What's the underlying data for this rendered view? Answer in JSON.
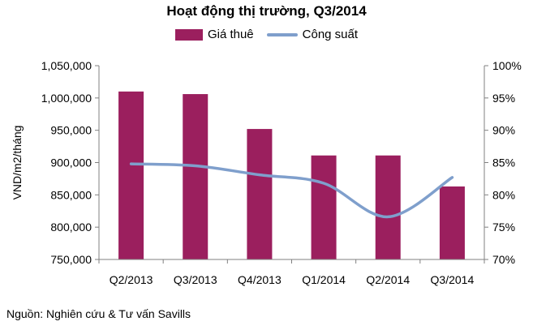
{
  "chart_data": {
    "type": "bar",
    "title": "Hoạt động thị trường, Q3/2014",
    "categories": [
      "Q2/2013",
      "Q3/2013",
      "Q4/2013",
      "Q1/2014",
      "Q2/2014",
      "Q3/2014"
    ],
    "series": [
      {
        "name": "Giá thuê",
        "type": "bar",
        "axis": "left",
        "values": [
          1010000,
          1006000,
          952000,
          911000,
          911000,
          863000
        ],
        "color": "#9B1F5E"
      },
      {
        "name": "Công suất",
        "type": "line",
        "axis": "right",
        "values": [
          84.8,
          84.5,
          83.1,
          81.8,
          76.6,
          82.7
        ],
        "color": "#7F9FCC"
      }
    ],
    "ylabel": "VND/m2/tháng",
    "ylim": [
      750000,
      1050000
    ],
    "yticks": [
      "750,000",
      "800,000",
      "850,000",
      "900,000",
      "950,000",
      "1,000,000",
      "1,050,000"
    ],
    "y2lim": [
      70,
      100
    ],
    "y2ticks": [
      "70%",
      "75%",
      "80%",
      "85%",
      "90%",
      "95%",
      "100%"
    ],
    "legend_position": "top",
    "grid": false
  },
  "source_text": "Nguồn: Nghiên cứu & Tư vấn Savills"
}
